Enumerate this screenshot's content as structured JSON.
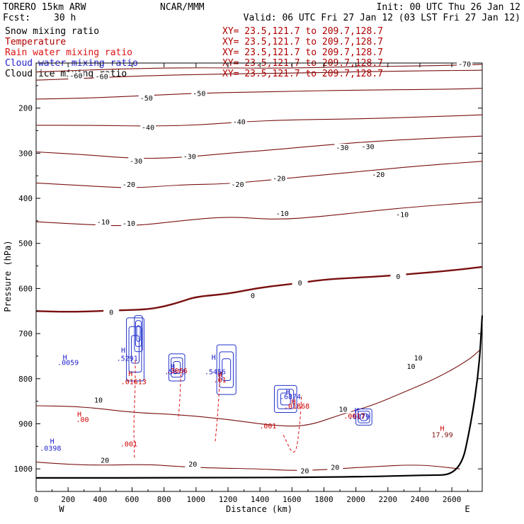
{
  "header": {
    "model": "TORERO  15km ARW",
    "center": "NCAR/MMM",
    "init": "Init: 00 UTC Thu 26 Jan 12",
    "fcst_label": "Fcst:",
    "fcst_value": "30 h",
    "valid": "Valid: 06 UTC Fri 27 Jan 12 (03 LST Fri 27 Jan 12)"
  },
  "fields": [
    {
      "name": "Snow mixing ratio",
      "xy": "XY=  23.5,121.7 to 209.7,128.7",
      "color": "#000000"
    },
    {
      "name": "Temperature",
      "xy": "XY=  23.5,121.7 to 209.7,128.7",
      "color": "#b00000"
    },
    {
      "name": "Rain water mixing ratio",
      "xy": "XY=  23.5,121.7 to 209.7,128.7",
      "color": "#dd1111"
    },
    {
      "name": "Cloud water mixing ratio",
      "xy": "XY=  23.5,121.7 to 209.7,128.7",
      "color": "#2222cc"
    },
    {
      "name": "Cloud ice mixing ratio",
      "xy": "XY=  23.5,121.7 to 209.7,128.7",
      "color": "#000000"
    }
  ],
  "chart_data": {
    "type": "cross-section",
    "xlabel": "Distance (km)",
    "ylabel": "Pressure (hPa)",
    "xlim": [
      0,
      2790
    ],
    "ylim": [
      1050,
      100
    ],
    "x_ticks": [
      0,
      200,
      400,
      600,
      800,
      1000,
      1200,
      1400,
      1600,
      1800,
      2000,
      2200,
      2400,
      2600
    ],
    "y_ticks": [
      200,
      300,
      400,
      500,
      600,
      700,
      800,
      900,
      1000
    ],
    "x_end_labels": {
      "left": "W",
      "right": "E"
    },
    "temperature_contours": [
      {
        "level": -70,
        "points": [
          [
            0,
            120
          ],
          [
            500,
            113
          ],
          [
            1000,
            110
          ],
          [
            1500,
            112
          ],
          [
            2000,
            108
          ],
          [
            2500,
            106
          ],
          [
            2790,
            103
          ]
        ],
        "labels": [
          [
            2680,
            105
          ]
        ]
      },
      {
        "level": -60,
        "points": [
          [
            0,
            138
          ],
          [
            300,
            134
          ],
          [
            700,
            128
          ],
          [
            1200,
            124
          ],
          [
            1700,
            122
          ],
          [
            2200,
            118
          ],
          [
            2790,
            116
          ]
        ],
        "labels": [
          [
            250,
            131
          ],
          [
            410,
            132
          ]
        ]
      },
      {
        "level": -50,
        "points": [
          [
            0,
            180
          ],
          [
            300,
            178
          ],
          [
            700,
            172
          ],
          [
            1000,
            167
          ],
          [
            1400,
            164
          ],
          [
            2000,
            160
          ],
          [
            2600,
            158
          ],
          [
            2790,
            156
          ]
        ],
        "labels": [
          [
            690,
            180
          ],
          [
            1020,
            170
          ]
        ]
      },
      {
        "level": -40,
        "points": [
          [
            0,
            238
          ],
          [
            300,
            238
          ],
          [
            700,
            240
          ],
          [
            1000,
            238
          ],
          [
            1300,
            230
          ],
          [
            1600,
            226
          ],
          [
            2000,
            224
          ],
          [
            2400,
            220
          ],
          [
            2790,
            215
          ]
        ],
        "labels": [
          [
            700,
            245
          ],
          [
            1270,
            233
          ]
        ]
      },
      {
        "level": -30,
        "points": [
          [
            0,
            297
          ],
          [
            300,
            303
          ],
          [
            600,
            312
          ],
          [
            900,
            310
          ],
          [
            1200,
            300
          ],
          [
            1500,
            292
          ],
          [
            1800,
            282
          ],
          [
            2100,
            274
          ],
          [
            2400,
            268
          ],
          [
            2790,
            262
          ]
        ],
        "labels": [
          [
            625,
            320
          ],
          [
            960,
            310
          ],
          [
            1915,
            290
          ],
          [
            2075,
            288
          ]
        ]
      },
      {
        "level": -20,
        "points": [
          [
            0,
            366
          ],
          [
            300,
            372
          ],
          [
            600,
            378
          ],
          [
            900,
            370
          ],
          [
            1200,
            368
          ],
          [
            1500,
            358
          ],
          [
            1800,
            348
          ],
          [
            2100,
            338
          ],
          [
            2400,
            328
          ],
          [
            2790,
            318
          ]
        ],
        "labels": [
          [
            580,
            372
          ],
          [
            1260,
            372
          ],
          [
            1520,
            358
          ],
          [
            2140,
            350
          ]
        ]
      },
      {
        "level": -10,
        "points": [
          [
            0,
            452
          ],
          [
            300,
            458
          ],
          [
            600,
            462
          ],
          [
            900,
            450
          ],
          [
            1200,
            440
          ],
          [
            1500,
            448
          ],
          [
            1800,
            440
          ],
          [
            2100,
            428
          ],
          [
            2400,
            418
          ],
          [
            2790,
            408
          ]
        ],
        "labels": [
          [
            420,
            455
          ],
          [
            580,
            458
          ],
          [
            1540,
            436
          ],
          [
            2290,
            438
          ]
        ]
      },
      {
        "level": 0,
        "points": [
          [
            0,
            650
          ],
          [
            200,
            652
          ],
          [
            400,
            650
          ],
          [
            560,
            648
          ],
          [
            700,
            646
          ],
          [
            800,
            640
          ],
          [
            900,
            630
          ],
          [
            1000,
            618
          ],
          [
            1200,
            612
          ],
          [
            1400,
            598
          ],
          [
            1600,
            590
          ],
          [
            1800,
            580
          ],
          [
            2000,
            576
          ],
          [
            2200,
            572
          ],
          [
            2400,
            566
          ],
          [
            2600,
            560
          ],
          [
            2790,
            552
          ]
        ],
        "labels": [
          [
            470,
            655
          ],
          [
            1355,
            618
          ],
          [
            1650,
            590
          ],
          [
            2265,
            576
          ]
        ]
      },
      {
        "level": 10,
        "points": [
          [
            0,
            860
          ],
          [
            300,
            862
          ],
          [
            600,
            875
          ],
          [
            900,
            880
          ],
          [
            1200,
            890
          ],
          [
            1500,
            905
          ],
          [
            1700,
            905
          ],
          [
            1900,
            880
          ],
          [
            2100,
            860
          ],
          [
            2300,
            830
          ],
          [
            2500,
            800
          ],
          [
            2700,
            760
          ],
          [
            2780,
            735
          ]
        ],
        "labels": [
          [
            390,
            850
          ],
          [
            1920,
            870
          ],
          [
            2345,
            775
          ],
          [
            2390,
            756
          ]
        ]
      },
      {
        "level": 20,
        "points": [
          [
            0,
            985
          ],
          [
            200,
            990
          ],
          [
            400,
            992
          ],
          [
            700,
            990
          ],
          [
            900,
            995
          ],
          [
            1100,
            998
          ],
          [
            1400,
            1000
          ],
          [
            1600,
            1004
          ],
          [
            1800,
            1002
          ],
          [
            2100,
            995
          ],
          [
            2400,
            990
          ],
          [
            2650,
            1000
          ]
        ],
        "labels": [
          [
            430,
            983
          ],
          [
            980,
            992
          ],
          [
            1680,
            1007
          ],
          [
            1870,
            999
          ]
        ]
      }
    ],
    "terrain": [
      [
        0,
        1020
      ],
      [
        1000,
        1020
      ],
      [
        2000,
        1018
      ],
      [
        2420,
        1014
      ],
      [
        2650,
        1013
      ],
      [
        2720,
        900
      ],
      [
        2770,
        780
      ],
      [
        2790,
        660
      ]
    ],
    "cloud_water_centers": [
      {
        "x": 200,
        "p": 770,
        "label": ".0059"
      },
      {
        "x": 570,
        "p": 760,
        "label": ".5291"
      },
      {
        "x": 870,
        "p": 790,
        "label": ".5876"
      },
      {
        "x": 1120,
        "p": 790,
        "label": ".5456"
      },
      {
        "x": 1590,
        "p": 845,
        "label": ".6874"
      },
      {
        "x": 2020,
        "p": 890,
        "label": ".0079"
      },
      {
        "x": 90,
        "p": 960,
        "label": ".0398"
      }
    ],
    "rain_water_centers": [
      {
        "x": 610,
        "p": 812,
        "label": ".01613"
      },
      {
        "x": 880,
        "p": 788,
        "label": ".3066"
      },
      {
        "x": 1150,
        "p": 808,
        "label": ".01"
      },
      {
        "x": 1630,
        "p": 866,
        "label": ".01868"
      },
      {
        "x": 1450,
        "p": 910,
        "label": ".001"
      },
      {
        "x": 580,
        "p": 950,
        "label": ".001"
      },
      {
        "x": 1990,
        "p": 888,
        "label": ".0017"
      },
      {
        "x": 2540,
        "p": 930,
        "label": "17.99"
      },
      {
        "x": 290,
        "p": 896,
        "label": ".00"
      }
    ],
    "high_marks": [
      {
        "x": 180,
        "p": 758,
        "color": "#2222cc"
      },
      {
        "x": 545,
        "p": 742,
        "color": "#2222cc"
      },
      {
        "x": 590,
        "p": 794,
        "color": "#cc0000"
      },
      {
        "x": 855,
        "p": 778,
        "color": "#2222cc"
      },
      {
        "x": 1110,
        "p": 758,
        "color": "#2222cc"
      },
      {
        "x": 1150,
        "p": 796,
        "color": "#cc0000"
      },
      {
        "x": 1575,
        "p": 834,
        "color": "#2222cc"
      },
      {
        "x": 1610,
        "p": 856,
        "color": "#cc0000"
      },
      {
        "x": 2005,
        "p": 876,
        "color": "#2222cc"
      },
      {
        "x": 2540,
        "p": 916,
        "color": "#cc0000"
      },
      {
        "x": 270,
        "p": 884,
        "color": "#cc0000"
      },
      {
        "x": 100,
        "p": 944,
        "color": "#2222cc"
      }
    ],
    "cloud_blobs": [
      {
        "x": 620,
        "p": 735,
        "rx": 55,
        "rp": 70
      },
      {
        "x": 640,
        "p": 700,
        "rx": 25,
        "rp": 40
      },
      {
        "x": 880,
        "p": 775,
        "rx": 50,
        "rp": 30
      },
      {
        "x": 1190,
        "p": 780,
        "rx": 60,
        "rp": 55
      },
      {
        "x": 1560,
        "p": 845,
        "rx": 70,
        "rp": 30
      },
      {
        "x": 2050,
        "p": 885,
        "rx": 50,
        "rp": 18
      }
    ],
    "rain_dashes": [
      [
        [
          620,
          760
        ],
        [
          620,
          820
        ],
        [
          610,
          900
        ],
        [
          615,
          980
        ]
      ],
      [
        [
          905,
          790
        ],
        [
          900,
          840
        ],
        [
          890,
          890
        ]
      ],
      [
        [
          1150,
          790
        ],
        [
          1140,
          860
        ],
        [
          1120,
          940
        ]
      ],
      [
        [
          1660,
          840
        ],
        [
          1650,
          900
        ],
        [
          1620,
          980
        ],
        [
          1540,
          920
        ]
      ]
    ]
  }
}
